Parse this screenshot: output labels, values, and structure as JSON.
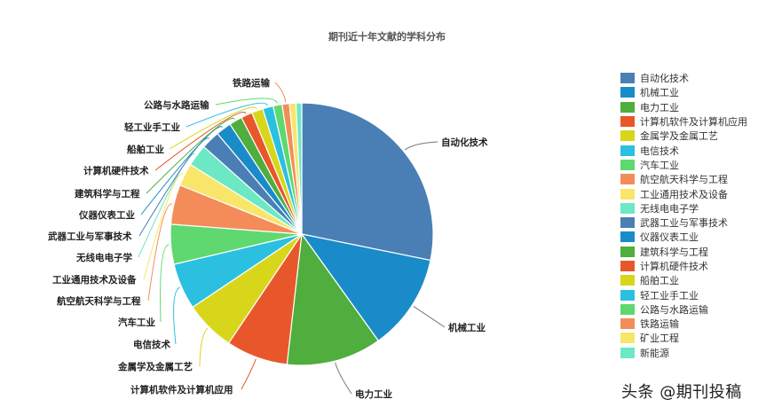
{
  "chart_data": {
    "type": "pie",
    "title": "期刊近十年文献的学科分布",
    "unit": "percent (estimated from slice angles)",
    "legend_position": "right",
    "start_angle": "12 o'clock, clockwise",
    "categories": [
      "自动化技术",
      "机械工业",
      "电力工业",
      "计算机软件及计算机应用",
      "金属学及金属工艺",
      "电信技术",
      "汽车工业",
      "航空航天科学与工程",
      "工业通用技术及设备",
      "无线电电子学",
      "武器工业与军事技术",
      "仪器仪表工业",
      "建筑科学与工程",
      "计算机硬件技术",
      "船舶工业",
      "轻工业手工业",
      "公路与水路运输",
      "铁路运输",
      "矿业工程",
      "新能源"
    ],
    "values": [
      28.2,
      11.9,
      11.7,
      7.6,
      6.2,
      5.7,
      4.9,
      4.9,
      2.8,
      2.7,
      2.3,
      1.9,
      1.6,
      1.4,
      1.4,
      1.3,
      1.1,
      0.9,
      0.8,
      0.7
    ],
    "colors": [
      "#4a7fb5",
      "#1a8bc9",
      "#4fae3d",
      "#e8572a",
      "#d8d61a",
      "#2bc0e0",
      "#5fd86f",
      "#f48c5a",
      "#f7e66a",
      "#6ce8c4",
      "#4a7fb5",
      "#1a8bc9",
      "#4fae3d",
      "#e8572a",
      "#d8d61a",
      "#2bc0e0",
      "#5fd86f",
      "#f48c5a",
      "#f7e66a",
      "#6ce8c4"
    ]
  },
  "title": "期刊近十年文献的学科分布",
  "legend": [
    {
      "label": "自动化技术"
    },
    {
      "label": "机械工业"
    },
    {
      "label": "电力工业"
    },
    {
      "label": "计算机软件及计算机应用"
    },
    {
      "label": "金属学及金属工艺"
    },
    {
      "label": "电信技术"
    },
    {
      "label": "汽车工业"
    },
    {
      "label": "航空航天科学与工程"
    },
    {
      "label": "工业通用技术及设备"
    },
    {
      "label": "无线电电子学"
    },
    {
      "label": "武器工业与军事技术"
    },
    {
      "label": "仪器仪表工业"
    },
    {
      "label": "建筑科学与工程"
    },
    {
      "label": "计算机硬件技术"
    },
    {
      "label": "船舶工业"
    },
    {
      "label": "轻工业手工业"
    },
    {
      "label": "公路与水路运输"
    },
    {
      "label": "铁路运输"
    },
    {
      "label": "矿业工程"
    },
    {
      "label": "新能源"
    }
  ],
  "watermark": "头条 @期刊投稿"
}
